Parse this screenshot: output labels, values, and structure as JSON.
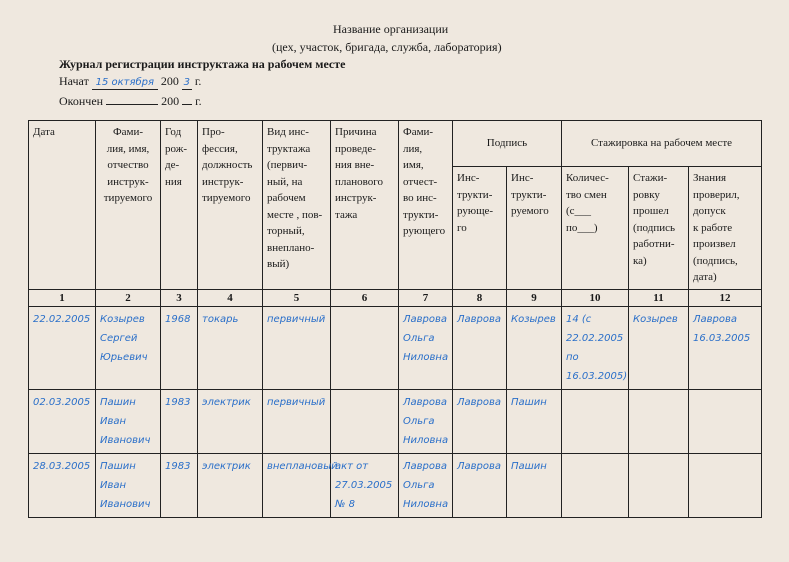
{
  "header": {
    "org": "Название организации",
    "org_sub": "(цех, участок, бригада, служба, лаборатория)",
    "journal_title": "Журнал регистрации инструктажа на рабочем месте",
    "started_label": "Начат",
    "started_day": "15 октября",
    "started_year_prefix": "200",
    "started_year_digit": "3",
    "year_suffix": "г.",
    "ended_label": "Окончен",
    "ended_year_prefix": "200"
  },
  "table": {
    "headers": [
      "Дата",
      "Фами-\nлия, имя,\nотчество\nинструк-\nтируемого",
      "Год\nрож-\nде-\nния",
      "Про-\nфессия,\nдолжность\nинструк-\nтируемого",
      "Вид инс-\nтруктажа\n(первич-\nный, на\nрабочем\nместе , пов-\nторный,\nвнеплано-\nвый)",
      "Причина\nпроведе-\nния вне-\nпланового\nинструк-\nтажа",
      "Фами-\nлия,\nимя,\nотчест-\nво инс-\nтрукти-\nрующего"
    ],
    "signature_group": "Подпись",
    "signature_cols": [
      "Инс-\nтрукти-\nрующе-\nго",
      "Инс-\nтрукти-\nруемого"
    ],
    "internship_group": "Стажировка на рабочем месте",
    "internship_cols": [
      "Количес-\nтво смен\n(с___\nпо___)",
      "Стажи-\nровку\nпрошел\n(подпись\nработни-\nка)",
      "Знания\nпроверил,\nдопуск\nк работе\nпроизвел\n(подпись,\nдата)"
    ],
    "numbers": [
      "1",
      "2",
      "3",
      "4",
      "5",
      "6",
      "7",
      "8",
      "9",
      "10",
      "11",
      "12"
    ],
    "rows": [
      [
        "22.02.2005",
        "Козырев\nСергей\nЮрьевич",
        "1968",
        "токарь",
        "первичный",
        "",
        "Лаврова\nОльга\nНиловна",
        "Лаврова",
        "Козырев",
        "14 (с\n22.02.2005\nпо\n16.03.2005)",
        "Козырев",
        "Лаврова\n16.03.2005"
      ],
      [
        "02.03.2005",
        "Пашин\nИван\nИванович",
        "1983",
        "электрик",
        "первичный",
        "",
        "Лаврова\nОльга\nНиловна",
        "Лаврова",
        "Пашин",
        "",
        "",
        ""
      ],
      [
        "28.03.2005",
        "Пашин\nИван\nИванович",
        "1983",
        "электрик",
        "внеплановый",
        "акт от\n27.03.2005\n№ 8",
        "Лаврова\nОльга\nНиловна",
        "Лаврова",
        "Пашин",
        "",
        "",
        ""
      ]
    ]
  },
  "colors": {
    "ink": "#2a6fc9",
    "paper": "#efe8df"
  }
}
